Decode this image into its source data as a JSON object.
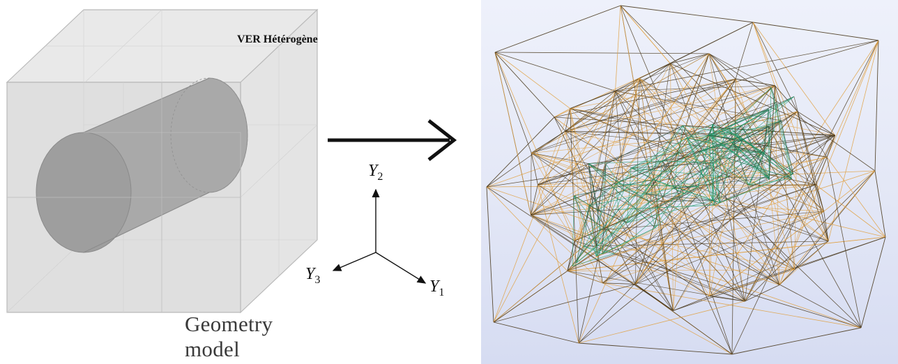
{
  "geometry": {
    "title": "VER Hétérogène",
    "caption": "Geometry model"
  },
  "axes": {
    "y2": {
      "letter": "Y",
      "sub": "2"
    },
    "y3": {
      "letter": "Y",
      "sub": "3"
    },
    "y1": {
      "letter": "Y",
      "sub": "1"
    }
  },
  "colors": {
    "matrix_edge": "#b9b9b9",
    "fiber_fill": "#a6a6a6",
    "mesh_orange": "#e0a040",
    "mesh_dark": "#4a3a1e",
    "mesh_green": "#1f9a6a"
  }
}
